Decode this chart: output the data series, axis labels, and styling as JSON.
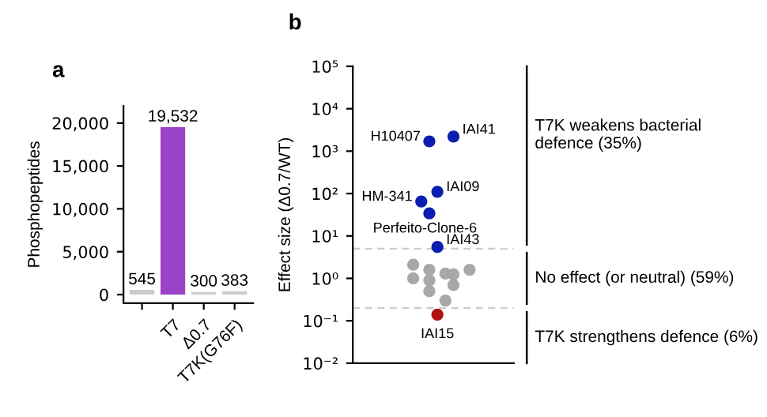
{
  "chart_data": [
    {
      "type": "bar",
      "title": "a",
      "ylabel": "Phosphopeptides",
      "categories": [
        null,
        "T7",
        "Δ0.7",
        "T7K(G76F)"
      ],
      "values": [
        545,
        19532,
        300,
        383
      ],
      "colors": [
        "#cccccc",
        "#9b44c8",
        "#cccccc",
        "#cccccc"
      ],
      "value_labels": [
        "545",
        "19,532",
        "300",
        "383"
      ],
      "ylim": [
        -1000,
        22000
      ],
      "yticks": [
        0,
        {
          "value": 5000,
          "label": "5,000"
        },
        {
          "value": 10000,
          "label": "10,000"
        },
        {
          "value": 15000,
          "label": "15,000"
        },
        {
          "value": 20000,
          "label": "20,000"
        }
      ],
      "grid": false,
      "legend": false
    },
    {
      "type": "scatter",
      "title": "b",
      "ylabel": "Effect size (Δ0.7/WT)",
      "log": "y",
      "categories": [
        null,
        null,
        null,
        null,
        null,
        null,
        null,
        null,
        null,
        null,
        null,
        null,
        null,
        null,
        null,
        null,
        null,
        null,
        null,
        null
      ],
      "series": [
        {
          "color": "#a8a8a8",
          "values": [
            null,
            null,
            null,
            null,
            null,
            null,
            null,
            2.1,
            null,
            1.6,
            null,
            1.3,
            1.25,
            null,
            1.6,
            null,
            null,
            null,
            null,
            null
          ]
        },
        {
          "color": "#a8a8a8",
          "values": [
            null,
            null,
            null,
            null,
            null,
            null,
            null,
            1.0,
            null,
            0.9,
            null,
            0.3,
            0.7,
            null,
            null,
            null,
            null,
            null,
            null,
            null
          ]
        },
        {
          "color": "#a8a8a8",
          "values": [
            null,
            null,
            null,
            null,
            null,
            null,
            null,
            null,
            null,
            0.5,
            null,
            null,
            null,
            null,
            null,
            null,
            null,
            null,
            null,
            null
          ]
        },
        {
          "name": "H10407",
          "color": "#0a1fb0",
          "values": [
            null,
            null,
            null,
            null,
            null,
            null,
            null,
            null,
            null,
            1700,
            null,
            null,
            null,
            null,
            null,
            null,
            null,
            null,
            null,
            null
          ]
        },
        {
          "name": "IAI41",
          "color": "#0a1fb0",
          "values": [
            null,
            null,
            null,
            null,
            null,
            null,
            null,
            null,
            null,
            null,
            null,
            null,
            2200,
            null,
            null,
            null,
            null,
            null,
            null,
            null
          ]
        },
        {
          "name": "IAI09",
          "color": "#0a1fb0",
          "values": [
            null,
            null,
            null,
            null,
            null,
            null,
            null,
            null,
            null,
            null,
            110,
            null,
            null,
            null,
            null,
            null,
            null,
            null,
            null,
            null
          ]
        },
        {
          "name": "HM-341",
          "color": "#0a1fb0",
          "values": [
            null,
            null,
            null,
            null,
            null,
            null,
            null,
            null,
            65,
            null,
            null,
            null,
            null,
            null,
            null,
            null,
            null,
            null,
            null,
            null
          ]
        },
        {
          "name": "Perfeito-Clone-6",
          "color": "#0a1fb0",
          "values": [
            null,
            null,
            null,
            null,
            null,
            null,
            null,
            null,
            null,
            34,
            null,
            null,
            null,
            null,
            null,
            null,
            null,
            null,
            null,
            null
          ]
        },
        {
          "name": "IAI43",
          "color": "#0a1fb0",
          "values": [
            null,
            null,
            null,
            null,
            null,
            null,
            null,
            null,
            null,
            null,
            5.5,
            null,
            null,
            null,
            null,
            null,
            null,
            null,
            null,
            null
          ]
        },
        {
          "name": "IAI15",
          "color": "#b01010",
          "values": [
            null,
            null,
            null,
            null,
            null,
            null,
            null,
            null,
            null,
            null,
            0.14,
            null,
            null,
            null,
            null,
            null,
            null,
            null,
            null,
            null
          ]
        }
      ],
      "marker": "circle",
      "ylim": [
        0.01,
        100000
      ],
      "yticks": [
        {
          "value": 0.01,
          "label": "10⁻²"
        },
        {
          "value": 0.1,
          "label": "10⁻¹"
        },
        {
          "value": 1,
          "label": "10⁰"
        },
        {
          "value": 10,
          "label": "10¹"
        },
        {
          "value": 100,
          "label": "10²"
        },
        {
          "value": 1000,
          "label": "10³"
        },
        {
          "value": 10000,
          "label": "10⁴"
        },
        {
          "value": 100000,
          "label": "10⁵"
        }
      ],
      "tick_labels": "y",
      "ref_lines": [
        {
          "axis": "y",
          "value": 5,
          "color": "#cccccc",
          "line_style": "dashed"
        },
        {
          "axis": "y",
          "value": 0.2,
          "color": "#cccccc",
          "line_style": "dashed"
        }
      ],
      "annotations": [
        "T7K weakens bacterial\ndefence (35%)",
        "No effect (or neutral) (59%)",
        "T7K strengthens defence (6%)"
      ],
      "grid": false,
      "legend": false
    }
  ]
}
